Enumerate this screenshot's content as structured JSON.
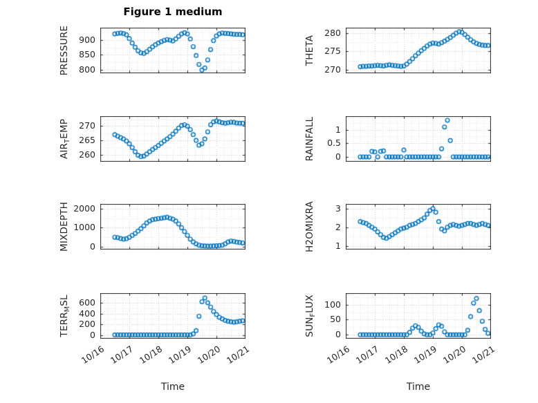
{
  "figure": {
    "title": "Figure 1 medium"
  },
  "x_axis": {
    "label": "Time"
  },
  "style": {
    "marker_color": "#0072BD",
    "axis_color": "#262626",
    "grid_major": "#c6c6c6",
    "grid_minor": "#e3e3e3",
    "marker": "open-circle"
  },
  "chart_data": [
    {
      "type": "scatter",
      "name": "PRESSURE",
      "ylabel_parts": [
        {
          "text": "PRESSURE",
          "sub": false
        }
      ],
      "xlim": [
        0,
        5
      ],
      "xticks": [
        0,
        1,
        2,
        3,
        4,
        5
      ],
      "xtick_labels": [
        "10/16",
        "10/17",
        "10/18",
        "10/19",
        "10/20",
        "10/21"
      ],
      "show_xticklabels": false,
      "ylim": [
        788,
        942
      ],
      "yticks": [
        800,
        850,
        900
      ],
      "x": [
        0.5,
        0.6,
        0.7,
        0.8,
        0.9,
        1.0,
        1.1,
        1.2,
        1.3,
        1.4,
        1.5,
        1.6,
        1.7,
        1.8,
        1.9,
        2.0,
        2.1,
        2.2,
        2.3,
        2.4,
        2.5,
        2.6,
        2.7,
        2.8,
        2.9,
        3.0,
        3.1,
        3.2,
        3.3,
        3.4,
        3.5,
        3.6,
        3.7,
        3.8,
        3.9,
        4.0,
        4.1,
        4.2,
        4.3,
        4.4,
        4.5,
        4.6,
        4.7,
        4.8,
        4.9
      ],
      "y": [
        921,
        923,
        924,
        922,
        918,
        905,
        890,
        876,
        864,
        857,
        855,
        861,
        869,
        877,
        884,
        890,
        895,
        899,
        902,
        900,
        897,
        904,
        913,
        921,
        925,
        921,
        904,
        878,
        848,
        818,
        799,
        806,
        833,
        868,
        898,
        914,
        921,
        924,
        923,
        922,
        921,
        920,
        919,
        919,
        918
      ]
    },
    {
      "type": "scatter",
      "name": "THETA",
      "ylabel_parts": [
        {
          "text": "THETA",
          "sub": false
        }
      ],
      "xlim": [
        0,
        5
      ],
      "xticks": [
        0,
        1,
        2,
        3,
        4,
        5
      ],
      "xtick_labels": [
        "10/16",
        "10/17",
        "10/18",
        "10/19",
        "10/20",
        "10/21"
      ],
      "show_xticklabels": false,
      "ylim": [
        269,
        281.5
      ],
      "yticks": [
        270,
        275,
        280
      ],
      "x": [
        0.5,
        0.6,
        0.7,
        0.8,
        0.9,
        1.0,
        1.1,
        1.2,
        1.3,
        1.4,
        1.5,
        1.6,
        1.7,
        1.8,
        1.9,
        2.0,
        2.1,
        2.2,
        2.3,
        2.4,
        2.5,
        2.6,
        2.7,
        2.8,
        2.9,
        3.0,
        3.1,
        3.2,
        3.3,
        3.4,
        3.5,
        3.6,
        3.7,
        3.8,
        3.9,
        4.0,
        4.1,
        4.2,
        4.3,
        4.4,
        4.5,
        4.6,
        4.7,
        4.8,
        4.9
      ],
      "y": [
        270.8,
        270.9,
        270.9,
        271.0,
        271.0,
        271.1,
        271.2,
        271.1,
        271.0,
        271.2,
        271.3,
        271.2,
        271.1,
        271.0,
        270.9,
        271.0,
        271.5,
        272.2,
        273.0,
        273.8,
        274.5,
        275.2,
        275.8,
        276.5,
        277.0,
        277.3,
        277.2,
        277.0,
        277.4,
        277.8,
        278.3,
        278.8,
        279.4,
        280.0,
        280.4,
        280.2,
        279.6,
        278.9,
        278.2,
        277.6,
        277.2,
        276.9,
        276.7,
        276.6,
        276.6
      ]
    },
    {
      "type": "scatter",
      "name": "AIR_TEMP",
      "ylabel_parts": [
        {
          "text": "AIR",
          "sub": false
        },
        {
          "text": "T",
          "sub": true
        },
        {
          "text": "EMP",
          "sub": false
        }
      ],
      "xlim": [
        0,
        5
      ],
      "xticks": [
        0,
        1,
        2,
        3,
        4,
        5
      ],
      "xtick_labels": [
        "10/16",
        "10/17",
        "10/18",
        "10/19",
        "10/20",
        "10/21"
      ],
      "show_xticklabels": false,
      "ylim": [
        257.5,
        273.5
      ],
      "yticks": [
        260,
        265,
        270
      ],
      "x": [
        0.5,
        0.6,
        0.7,
        0.8,
        0.9,
        1.0,
        1.1,
        1.2,
        1.3,
        1.4,
        1.5,
        1.6,
        1.7,
        1.8,
        1.9,
        2.0,
        2.1,
        2.2,
        2.3,
        2.4,
        2.5,
        2.6,
        2.7,
        2.8,
        2.9,
        3.0,
        3.1,
        3.2,
        3.3,
        3.4,
        3.5,
        3.6,
        3.7,
        3.8,
        3.9,
        4.0,
        4.1,
        4.2,
        4.3,
        4.4,
        4.5,
        4.6,
        4.7,
        4.8,
        4.9
      ],
      "y": [
        267.0,
        266.5,
        266.0,
        265.5,
        264.8,
        263.8,
        262.5,
        261.0,
        259.8,
        259.3,
        259.5,
        260.2,
        261.0,
        261.8,
        262.5,
        263.2,
        264.0,
        264.8,
        265.5,
        266.3,
        267.2,
        268.2,
        269.3,
        270.2,
        270.5,
        270.0,
        268.8,
        267.0,
        265.0,
        263.3,
        263.8,
        265.5,
        268.0,
        270.5,
        271.5,
        271.8,
        271.5,
        271.2,
        271.0,
        271.2,
        271.4,
        271.3,
        271.1,
        271.0,
        271.0
      ]
    },
    {
      "type": "scatter",
      "name": "RAINFALL",
      "ylabel_parts": [
        {
          "text": "RAINFALL",
          "sub": false
        }
      ],
      "xlim": [
        0,
        5
      ],
      "xticks": [
        0,
        1,
        2,
        3,
        4,
        5
      ],
      "xtick_labels": [
        "10/16",
        "10/17",
        "10/18",
        "10/19",
        "10/20",
        "10/21"
      ],
      "show_xticklabels": false,
      "ylim": [
        -0.18,
        1.5
      ],
      "yticks": [
        0,
        0.5,
        1
      ],
      "x": [
        0.5,
        0.6,
        0.7,
        0.8,
        0.9,
        1.0,
        1.1,
        1.2,
        1.3,
        1.4,
        1.5,
        1.6,
        1.7,
        1.8,
        1.9,
        2.0,
        2.1,
        2.2,
        2.3,
        2.4,
        2.5,
        2.6,
        2.7,
        2.8,
        2.9,
        3.0,
        3.1,
        3.2,
        3.3,
        3.4,
        3.5,
        3.6,
        3.7,
        3.8,
        3.9,
        4.0,
        4.1,
        4.2,
        4.3,
        4.4,
        4.5,
        4.6,
        4.7,
        4.8,
        4.9
      ],
      "y": [
        0,
        0,
        0,
        0,
        0.2,
        0.18,
        0,
        0.2,
        0.22,
        0,
        0,
        0,
        0,
        0,
        0,
        0.25,
        0,
        0,
        0,
        0,
        0,
        0,
        0,
        0,
        0,
        0,
        0,
        0,
        0.3,
        1.1,
        1.35,
        0.6,
        0,
        0,
        0,
        0,
        0,
        0,
        0,
        0,
        0,
        0,
        0,
        0,
        0
      ]
    },
    {
      "type": "scatter",
      "name": "MIXDEPTH",
      "ylabel_parts": [
        {
          "text": "MIXDEPTH",
          "sub": false
        }
      ],
      "xlim": [
        0,
        5
      ],
      "xticks": [
        0,
        1,
        2,
        3,
        4,
        5
      ],
      "xtick_labels": [
        "10/16",
        "10/17",
        "10/18",
        "10/19",
        "10/20",
        "10/21"
      ],
      "show_xticklabels": false,
      "ylim": [
        -150,
        2250
      ],
      "yticks": [
        0,
        1000,
        2000
      ],
      "x": [
        0.5,
        0.6,
        0.7,
        0.8,
        0.9,
        1.0,
        1.1,
        1.2,
        1.3,
        1.4,
        1.5,
        1.6,
        1.7,
        1.8,
        1.9,
        2.0,
        2.1,
        2.2,
        2.3,
        2.4,
        2.5,
        2.6,
        2.7,
        2.8,
        2.9,
        3.0,
        3.1,
        3.2,
        3.3,
        3.4,
        3.5,
        3.6,
        3.7,
        3.8,
        3.9,
        4.0,
        4.1,
        4.2,
        4.3,
        4.4,
        4.5,
        4.6,
        4.7,
        4.8,
        4.9
      ],
      "y": [
        500,
        480,
        430,
        400,
        420,
        500,
        600,
        700,
        820,
        950,
        1100,
        1250,
        1350,
        1420,
        1450,
        1480,
        1500,
        1520,
        1550,
        1500,
        1450,
        1350,
        1200,
        1000,
        800,
        600,
        400,
        250,
        150,
        80,
        50,
        40,
        30,
        30,
        40,
        50,
        60,
        80,
        150,
        250,
        300,
        280,
        240,
        220,
        200
      ]
    },
    {
      "type": "scatter",
      "name": "H2OMIXRA",
      "ylabel_parts": [
        {
          "text": "H2OMIXRA",
          "sub": false
        }
      ],
      "xlim": [
        0,
        5
      ],
      "xticks": [
        0,
        1,
        2,
        3,
        4,
        5
      ],
      "xtick_labels": [
        "10/16",
        "10/17",
        "10/18",
        "10/19",
        "10/20",
        "10/21"
      ],
      "show_xticklabels": false,
      "ylim": [
        0.8,
        3.25
      ],
      "yticks": [
        1,
        2,
        3
      ],
      "x": [
        0.5,
        0.6,
        0.7,
        0.8,
        0.9,
        1.0,
        1.1,
        1.2,
        1.3,
        1.4,
        1.5,
        1.6,
        1.7,
        1.8,
        1.9,
        2.0,
        2.1,
        2.2,
        2.3,
        2.4,
        2.5,
        2.6,
        2.7,
        2.8,
        2.9,
        3.0,
        3.1,
        3.2,
        3.3,
        3.4,
        3.5,
        3.6,
        3.7,
        3.8,
        3.9,
        4.0,
        4.1,
        4.2,
        4.3,
        4.4,
        4.5,
        4.6,
        4.7,
        4.8,
        4.9
      ],
      "y": [
        2.3,
        2.25,
        2.2,
        2.1,
        2.0,
        1.9,
        1.75,
        1.6,
        1.45,
        1.4,
        1.5,
        1.6,
        1.7,
        1.8,
        1.9,
        1.95,
        2.0,
        2.1,
        2.15,
        2.2,
        2.3,
        2.4,
        2.5,
        2.7,
        2.9,
        3.0,
        2.8,
        2.3,
        1.9,
        1.8,
        2.0,
        2.1,
        2.15,
        2.1,
        2.05,
        2.1,
        2.15,
        2.2,
        2.2,
        2.15,
        2.1,
        2.15,
        2.2,
        2.15,
        2.1
      ]
    },
    {
      "type": "scatter",
      "name": "TERR_MSL",
      "ylabel_parts": [
        {
          "text": "TERR",
          "sub": false
        },
        {
          "text": "M",
          "sub": true
        },
        {
          "text": "SL",
          "sub": false
        }
      ],
      "xlim": [
        0,
        5
      ],
      "xticks": [
        0,
        1,
        2,
        3,
        4,
        5
      ],
      "xtick_labels": [
        "10/16",
        "10/17",
        "10/18",
        "10/19",
        "10/20",
        "10/21"
      ],
      "show_xticklabels": true,
      "ylim": [
        -70,
        780
      ],
      "yticks": [
        0,
        200,
        400,
        600
      ],
      "x": [
        0.5,
        0.6,
        0.7,
        0.8,
        0.9,
        1.0,
        1.1,
        1.2,
        1.3,
        1.4,
        1.5,
        1.6,
        1.7,
        1.8,
        1.9,
        2.0,
        2.1,
        2.2,
        2.3,
        2.4,
        2.5,
        2.6,
        2.7,
        2.8,
        2.9,
        3.0,
        3.1,
        3.2,
        3.3,
        3.4,
        3.5,
        3.6,
        3.7,
        3.8,
        3.9,
        4.0,
        4.1,
        4.2,
        4.3,
        4.4,
        4.5,
        4.6,
        4.7,
        4.8,
        4.9
      ],
      "y": [
        0,
        0,
        0,
        0,
        0,
        0,
        0,
        0,
        0,
        0,
        0,
        0,
        0,
        0,
        0,
        0,
        0,
        0,
        0,
        0,
        0,
        0,
        0,
        0,
        0,
        0,
        0,
        20,
        80,
        350,
        620,
        690,
        600,
        520,
        440,
        380,
        330,
        300,
        270,
        255,
        245,
        240,
        245,
        255,
        265
      ]
    },
    {
      "type": "scatter",
      "name": "SUN_FLUX",
      "ylabel_parts": [
        {
          "text": "SUN",
          "sub": false
        },
        {
          "text": "F",
          "sub": true
        },
        {
          "text": "LUX",
          "sub": false
        }
      ],
      "xlim": [
        0,
        5
      ],
      "xticks": [
        0,
        1,
        2,
        3,
        4,
        5
      ],
      "xtick_labels": [
        "10/16",
        "10/17",
        "10/18",
        "10/19",
        "10/20",
        "10/21"
      ],
      "show_xticklabels": true,
      "ylim": [
        -13,
        138
      ],
      "yticks": [
        0,
        50,
        100
      ],
      "x": [
        0.5,
        0.6,
        0.7,
        0.8,
        0.9,
        1.0,
        1.1,
        1.2,
        1.3,
        1.4,
        1.5,
        1.6,
        1.7,
        1.8,
        1.9,
        2.0,
        2.1,
        2.2,
        2.3,
        2.4,
        2.5,
        2.6,
        2.7,
        2.8,
        2.9,
        3.0,
        3.1,
        3.2,
        3.3,
        3.4,
        3.5,
        3.6,
        3.7,
        3.8,
        3.9,
        4.0,
        4.1,
        4.2,
        4.3,
        4.4,
        4.5,
        4.6,
        4.7,
        4.8,
        4.9
      ],
      "y": [
        0,
        0,
        0,
        0,
        0,
        0,
        0,
        0,
        0,
        0,
        0,
        0,
        0,
        0,
        0,
        0,
        0,
        8,
        22,
        30,
        25,
        12,
        3,
        0,
        0,
        6,
        20,
        33,
        28,
        10,
        0,
        0,
        0,
        0,
        0,
        0,
        0,
        15,
        60,
        105,
        120,
        80,
        45,
        18,
        5
      ]
    }
  ]
}
